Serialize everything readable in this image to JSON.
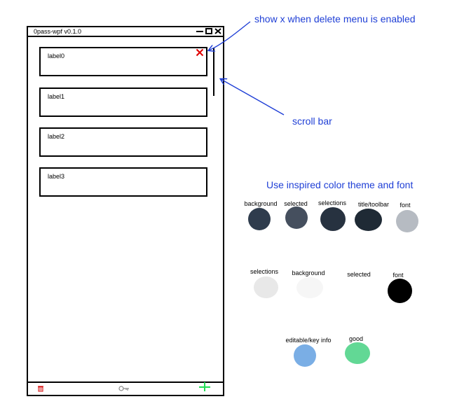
{
  "window": {
    "title": "0pass-wpf v0.1.0"
  },
  "icons": {
    "minimize": "minimize-icon",
    "maximize": "maximize-icon",
    "close": "close-icon",
    "delete": "trash-icon",
    "key": "key-icon",
    "add": "plus-icon",
    "delete_x": "close-x-icon"
  },
  "list": {
    "items": [
      {
        "label": "label0"
      },
      {
        "label": "label1"
      },
      {
        "label": "label2"
      },
      {
        "label": "label3"
      }
    ]
  },
  "annotations": {
    "delete_note": "show x when delete menu is enabled",
    "scrollbar_note": "scroll bar",
    "theme_note": "Use inspired color theme and font"
  },
  "palette": {
    "dark": [
      {
        "label": "background",
        "color": "#2f3c4d"
      },
      {
        "label": "selected",
        "color": "#454f5e"
      },
      {
        "label": "selections",
        "color": "#273240"
      },
      {
        "label": "title/toolbar",
        "color": "#1f2a35"
      },
      {
        "label": "font",
        "color": "#b6bbc2"
      }
    ],
    "light": [
      {
        "label": "selections",
        "color": "#e8e8e8"
      },
      {
        "label": "background",
        "color": "#f6f6f6"
      },
      {
        "label": "selected",
        "color": "#ffffff"
      },
      {
        "label": "font",
        "color": "#000000"
      }
    ],
    "accent": [
      {
        "label": "editable/key info",
        "color": "#7aaee5"
      },
      {
        "label": "good",
        "color": "#62d895"
      }
    ]
  },
  "colors": {
    "annotation": "#1f3fd6",
    "delete_x": "#e00000",
    "delete_icon": "#d40000",
    "add_icon": "#22dd55"
  }
}
